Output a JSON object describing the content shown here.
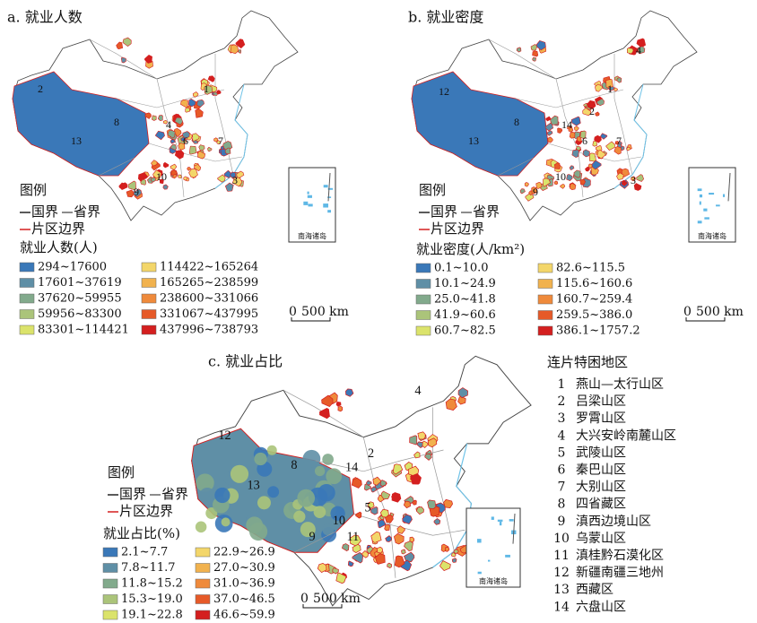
{
  "panels": [
    {
      "title": "a. 就业人数",
      "legend": {
        "title": "图例",
        "national_border": "国界",
        "provincial_border": "省界",
        "region_border": "片区边界",
        "heading": "就业人数(人)",
        "items": [
          {
            "label": "294~17600",
            "color": "#3a78b8"
          },
          {
            "label": "17601~37619",
            "color": "#5f8fa6"
          },
          {
            "label": "37620~59955",
            "color": "#82aa8c"
          },
          {
            "label": "59956~83300",
            "color": "#abc47a"
          },
          {
            "label": "83301~114421",
            "color": "#dbe36b"
          },
          {
            "label": "114422~165264",
            "color": "#f3d66a"
          },
          {
            "label": "165265~238599",
            "color": "#f1b24e"
          },
          {
            "label": "238600~331066",
            "color": "#ef8a3b"
          },
          {
            "label": "331067~437995",
            "color": "#e65a28"
          },
          {
            "label": "437996~738793",
            "color": "#d41f1f"
          }
        ]
      },
      "map_labels": [
        "2",
        "1",
        "8",
        "4",
        "13",
        "6",
        "7",
        "3",
        "10",
        "9"
      ],
      "inset_label": "南海诸岛",
      "scale": {
        "zero": "0",
        "distance": "500 km"
      }
    },
    {
      "title": "b. 就业密度",
      "legend": {
        "title": "图例",
        "national_border": "国界",
        "provincial_border": "省界",
        "region_border": "片区边界",
        "heading": "就业密度(人/km²)",
        "items": [
          {
            "label": "0.1~10.0",
            "color": "#3a78b8"
          },
          {
            "label": "10.1~24.9",
            "color": "#5f8fa6"
          },
          {
            "label": "25.0~41.8",
            "color": "#82aa8c"
          },
          {
            "label": "41.9~60.6",
            "color": "#abc47a"
          },
          {
            "label": "60.7~82.5",
            "color": "#dbe36b"
          },
          {
            "label": "82.6~115.5",
            "color": "#f3d66a"
          },
          {
            "label": "115.6~160.6",
            "color": "#f1b24e"
          },
          {
            "label": "160.7~259.4",
            "color": "#ef8a3b"
          },
          {
            "label": "259.5~386.0",
            "color": "#e65a28"
          },
          {
            "label": "386.1~1757.2",
            "color": "#d41f1f"
          }
        ]
      },
      "map_labels": [
        "12",
        "1",
        "8",
        "14",
        "2",
        "6",
        "13",
        "7",
        "10",
        "9",
        "3",
        "4"
      ],
      "inset_label": "南海诸岛",
      "scale": {
        "zero": "0",
        "distance": "500 km"
      }
    },
    {
      "title": "c. 就业占比",
      "legend": {
        "title": "图例",
        "national_border": "国界",
        "provincial_border": "省界",
        "region_border": "片区边界",
        "heading": "就业占比(%)",
        "items": [
          {
            "label": "2.1~7.7",
            "color": "#3a78b8"
          },
          {
            "label": "7.8~11.7",
            "color": "#5f8fa6"
          },
          {
            "label": "11.8~15.2",
            "color": "#82aa8c"
          },
          {
            "label": "15.3~19.0",
            "color": "#abc47a"
          },
          {
            "label": "19.1~22.8",
            "color": "#dbe36b"
          },
          {
            "label": "22.9~26.9",
            "color": "#f3d66a"
          },
          {
            "label": "27.0~30.9",
            "color": "#f1b24e"
          },
          {
            "label": "31.0~36.9",
            "color": "#ef8a3b"
          },
          {
            "label": "37.0~46.5",
            "color": "#e65a28"
          },
          {
            "label": "46.6~59.9",
            "color": "#d41f1f"
          }
        ]
      },
      "map_labels": [
        "4",
        "12",
        "2",
        "8",
        "14",
        "13",
        "5",
        "10",
        "9",
        "11"
      ],
      "inset_label": "南海诸岛",
      "scale": {
        "zero": "0",
        "distance": "500 km"
      }
    }
  ],
  "region_list": {
    "title": "连片特困地区",
    "items": [
      {
        "number": "1",
        "name": "燕山—太行山区"
      },
      {
        "number": "2",
        "name": "吕梁山区"
      },
      {
        "number": "3",
        "name": "罗霄山区"
      },
      {
        "number": "4",
        "name": "大兴安岭南麓山区"
      },
      {
        "number": "5",
        "name": "武陵山区"
      },
      {
        "number": "6",
        "name": "秦巴山区"
      },
      {
        "number": "7",
        "name": "大别山区"
      },
      {
        "number": "8",
        "name": "四省藏区"
      },
      {
        "number": "9",
        "name": "滇西边境山区"
      },
      {
        "number": "10",
        "name": "乌蒙山区"
      },
      {
        "number": "11",
        "name": "滇桂黔石漠化区"
      },
      {
        "number": "12",
        "name": "新疆南疆三地州"
      },
      {
        "number": "13",
        "name": "西藏区"
      },
      {
        "number": "14",
        "name": "六盘山区"
      }
    ]
  }
}
